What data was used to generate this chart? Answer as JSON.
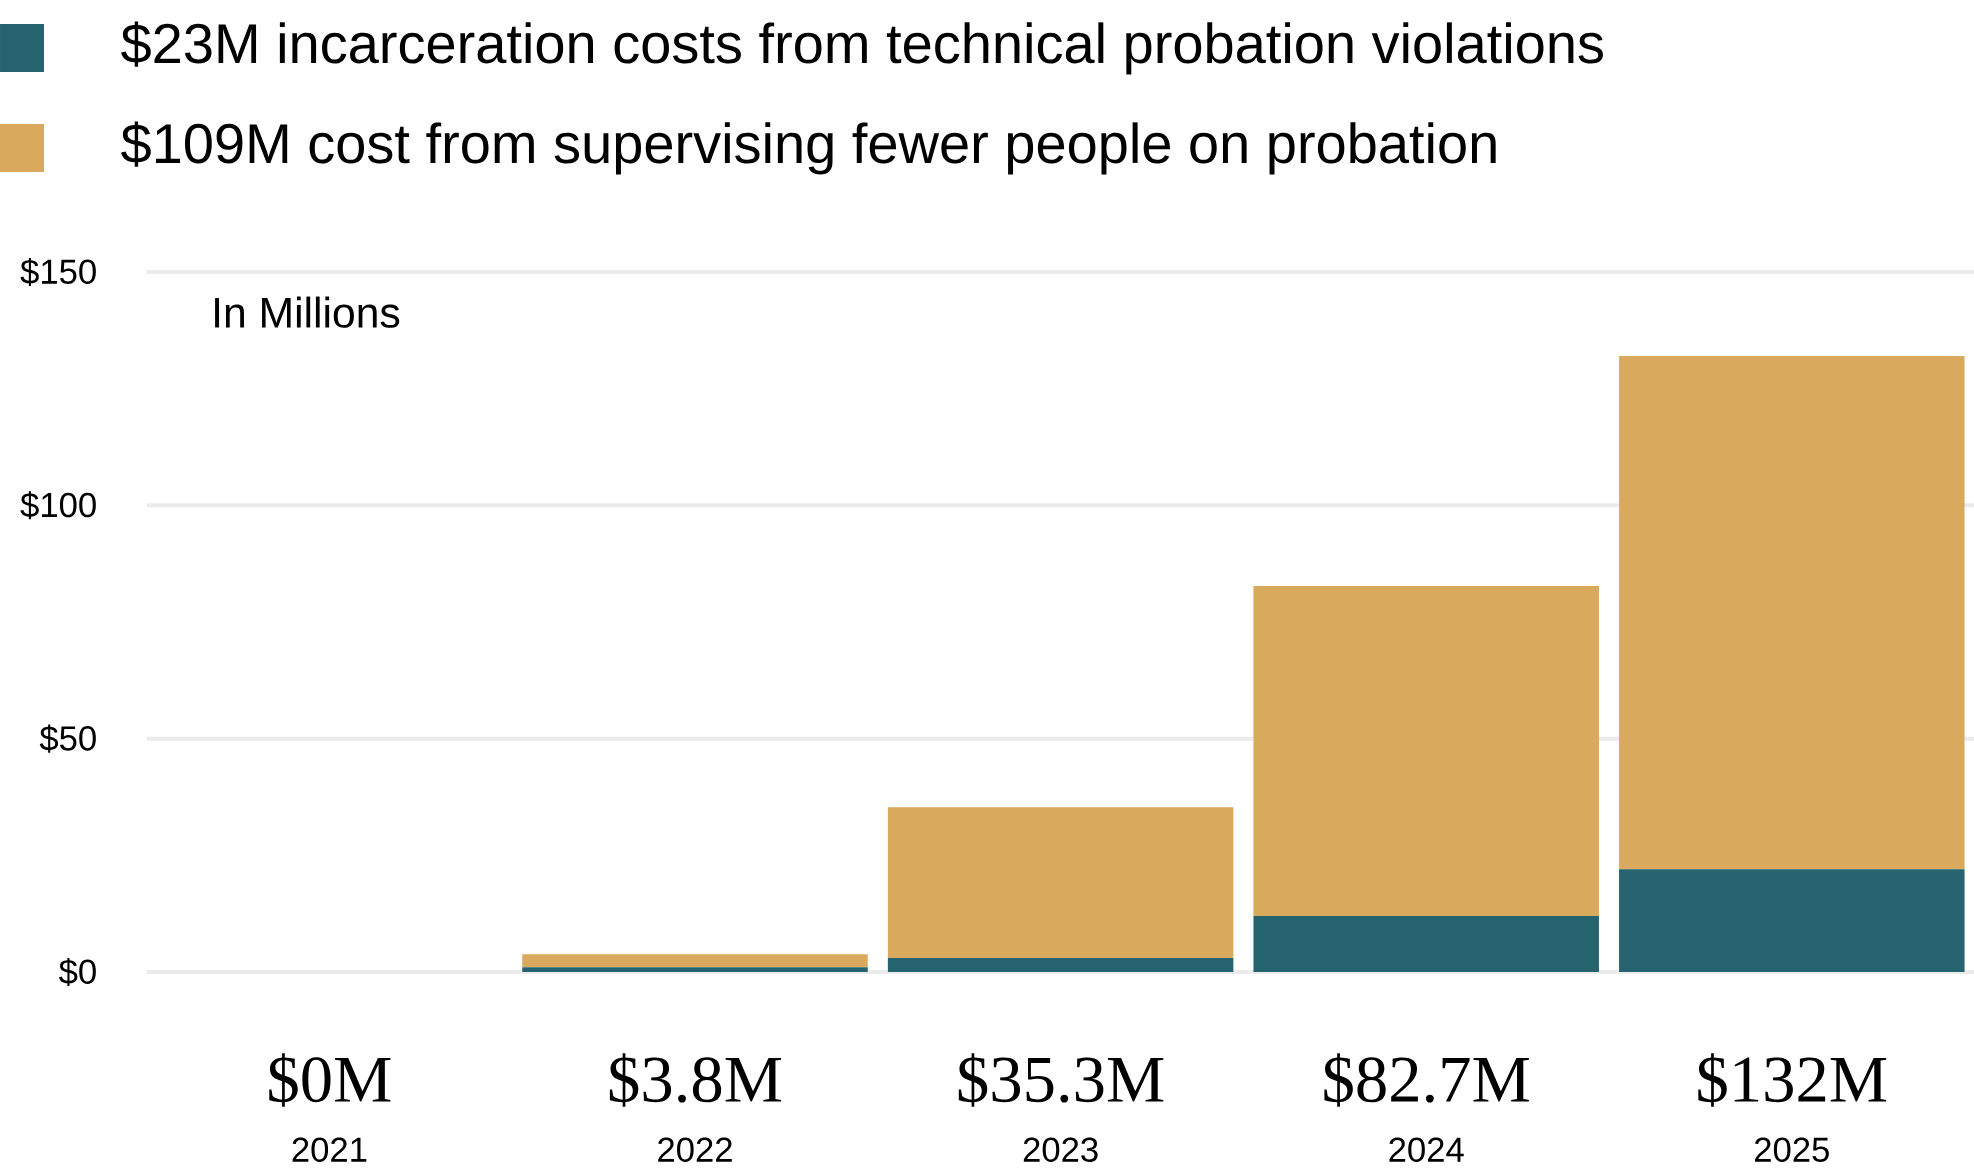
{
  "chart_data": {
    "type": "bar",
    "stacked": true,
    "categories": [
      "2021",
      "2022",
      "2023",
      "2024",
      "2025"
    ],
    "series": [
      {
        "name": "$23M incarceration costs from technical probation violations",
        "color": "#25636e",
        "values": [
          0,
          1,
          3,
          12,
          22
        ]
      },
      {
        "name": "$109M cost from supervising fewer people on probation",
        "color": "#d9a95e",
        "values": [
          0,
          2.8,
          32.3,
          70.7,
          110
        ]
      }
    ],
    "totals": [
      "$0M",
      "$3.8M",
      "$35.3M",
      "$82.7M",
      "$132M"
    ],
    "ylim": [
      0,
      150
    ],
    "yticks": [
      {
        "value": 0,
        "label": "$0"
      },
      {
        "value": 50,
        "label": "$50"
      },
      {
        "value": 100,
        "label": "$100"
      },
      {
        "value": 150,
        "label": "$150"
      }
    ],
    "grid": "y",
    "legend": "top left",
    "annotations": [
      "In Millions"
    ]
  }
}
